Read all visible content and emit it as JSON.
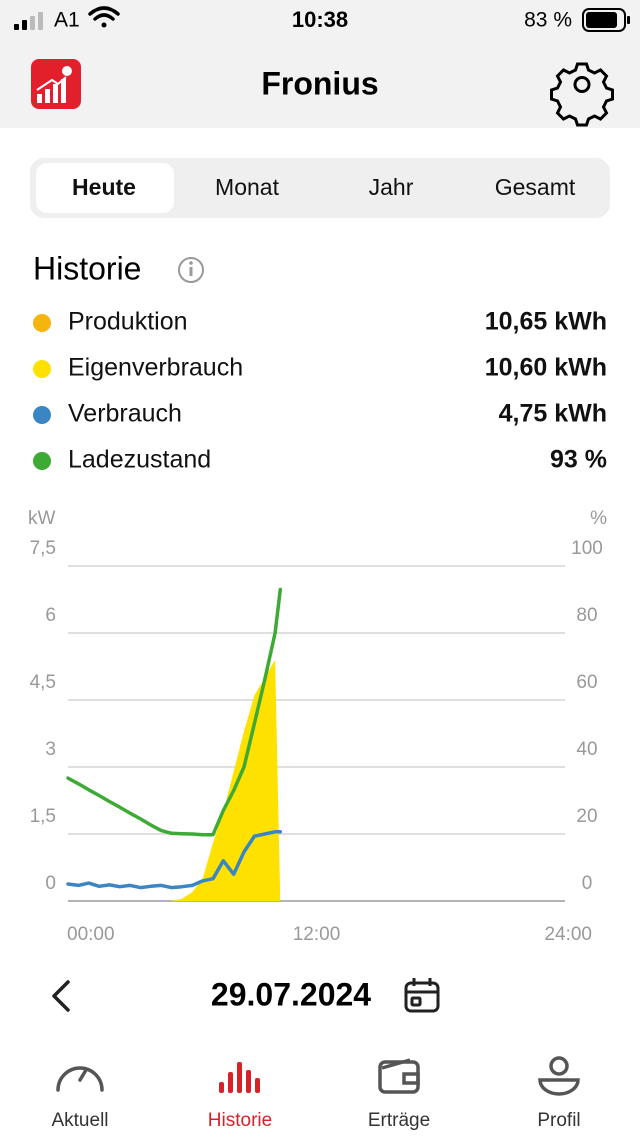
{
  "status_bar": {
    "carrier": "A1",
    "time": "10:38",
    "battery": "83 %"
  },
  "header": {
    "title": "Fronius"
  },
  "tabs": {
    "items": [
      "Heute",
      "Monat",
      "Jahr",
      "Gesamt"
    ],
    "active": 0
  },
  "history": {
    "title": "Historie",
    "items": [
      {
        "name": "Produktion",
        "value": "10,65 kWh",
        "color": "#f6b40e"
      },
      {
        "name": "Eigenverbrauch",
        "value": "10,60 kWh",
        "color": "#ffe100"
      },
      {
        "name": "Verbrauch",
        "value": "4,75 kWh",
        "color": "#3a86c4"
      },
      {
        "name": "Ladezustand",
        "value": "93 %",
        "color": "#3daa35"
      }
    ]
  },
  "chart_data": {
    "type": "line",
    "y_unit": "kW",
    "y2_unit": "%",
    "grid": true,
    "x": [
      0,
      0.5,
      1,
      1.5,
      2,
      2.5,
      3,
      3.5,
      4,
      4.5,
      5,
      5.5,
      6,
      6.5,
      7,
      7.5,
      8,
      8.5,
      9,
      9.5,
      10,
      10.25
    ],
    "xlim": [
      0,
      24
    ],
    "xticks": [
      {
        "value": 0,
        "label": "00:00"
      },
      {
        "value": 12,
        "label": "12:00"
      },
      {
        "value": 24,
        "label": "24:00"
      }
    ],
    "ylim": [
      0,
      7.5
    ],
    "yticks": [
      0,
      {
        "value": 1.5,
        "label": "1,5"
      },
      3,
      {
        "value": 4.5,
        "label": "4,5"
      },
      6,
      {
        "value": 7.5,
        "label": "7,5"
      }
    ],
    "y2lim": [
      0,
      100
    ],
    "y2ticks": [
      0,
      20,
      40,
      60,
      80,
      100
    ],
    "series": [
      {
        "kind": "area",
        "color": "#ffe100",
        "values": [
          0,
          0,
          0,
          0,
          0,
          0,
          0,
          0,
          0,
          0,
          0,
          0.05,
          0.2,
          0.5,
          1.3,
          2.0,
          2.9,
          3.8,
          4.6,
          5.0,
          5.4,
          0
        ]
      },
      {
        "kind": "line",
        "color": "#3a86c4",
        "values": [
          0.38,
          0.35,
          0.4,
          0.33,
          0.36,
          0.32,
          0.35,
          0.3,
          0.33,
          0.35,
          0.3,
          0.32,
          0.35,
          0.45,
          0.5,
          0.9,
          0.6,
          1.1,
          1.45,
          1.5,
          1.55,
          1.55
        ]
      },
      {
        "kind": "line",
        "color": "#3daa35",
        "axis": "y2",
        "values": [
          36.7,
          35,
          33.2,
          31.5,
          29.7,
          28,
          26.2,
          24.5,
          22.7,
          21,
          20.2,
          20.1,
          20,
          19.8,
          19.8,
          27,
          33,
          40,
          53,
          66,
          80,
          93
        ]
      }
    ]
  },
  "date_nav": {
    "date": "29.07.2024"
  },
  "bottom_nav": {
    "items": [
      "Aktuell",
      "Historie",
      "Erträge",
      "Profil"
    ],
    "active": 1
  }
}
